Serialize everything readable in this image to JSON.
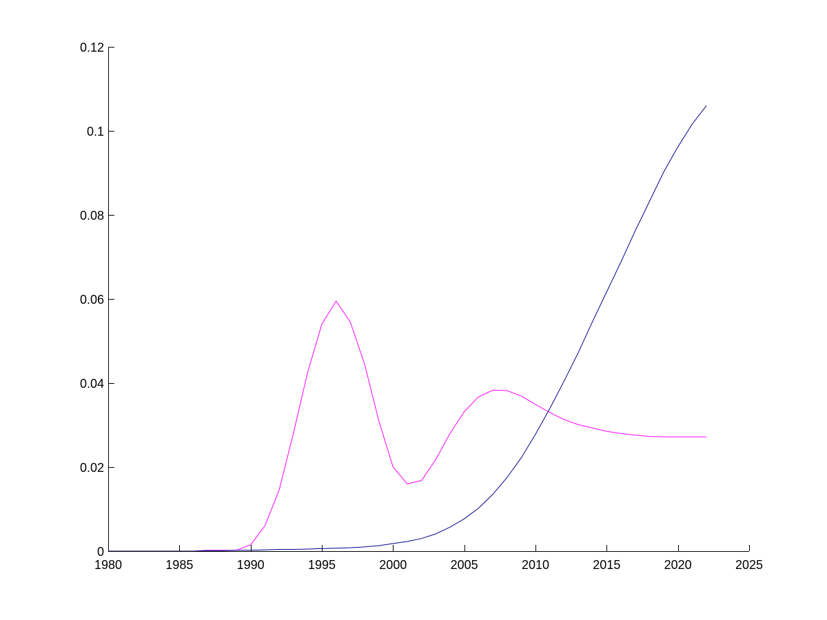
{
  "chart_data": {
    "type": "line",
    "title": "",
    "xlabel": "",
    "ylabel": "",
    "xlim": [
      1980,
      2025
    ],
    "ylim": [
      0,
      0.12
    ],
    "grid": false,
    "x_ticks": [
      1980,
      1985,
      1990,
      1995,
      2000,
      2005,
      2010,
      2015,
      2020,
      2025
    ],
    "x_tick_labels": [
      "1980",
      "1985",
      "1990",
      "1995",
      "2000",
      "2005",
      "2010",
      "2015",
      "2020",
      "2025"
    ],
    "y_ticks": [
      0,
      0.02,
      0.04,
      0.06,
      0.08,
      0.1,
      0.12
    ],
    "y_tick_labels": [
      "0",
      "0.02",
      "0.04",
      "0.06",
      "0.08",
      "0.1",
      "0.12"
    ],
    "series": [
      {
        "color": "#ff00ff",
        "x": [
          1980,
          1981,
          1982,
          1983,
          1984,
          1985,
          1986,
          1987,
          1988,
          1989,
          1990,
          1991,
          1992,
          1993,
          1994,
          1995,
          1996,
          1997,
          1998,
          1999,
          2000,
          2001,
          2002,
          2003,
          2004,
          2005,
          2006,
          2007,
          2008,
          2009,
          2010,
          2011,
          2012,
          2013,
          2014,
          2015,
          2016,
          2017,
          2018,
          2019,
          2020,
          2021,
          2022
        ],
        "y": [
          0,
          0,
          0,
          0,
          0,
          0,
          0,
          0.0002,
          0.0002,
          0.0002,
          0.0015,
          0.006,
          0.0145,
          0.028,
          0.0425,
          0.054,
          0.0595,
          0.0545,
          0.0445,
          0.031,
          0.02,
          0.016,
          0.0168,
          0.0218,
          0.028,
          0.0332,
          0.0367,
          0.0383,
          0.0382,
          0.0369,
          0.0349,
          0.033,
          0.0313,
          0.0301,
          0.0293,
          0.0285,
          0.028,
          0.0276,
          0.0273,
          0.0272,
          0.0272,
          0.0272,
          0.0272
        ]
      },
      {
        "color": "#00008b",
        "x": [
          1980,
          1981,
          1982,
          1983,
          1984,
          1985,
          1986,
          1987,
          1988,
          1989,
          1990,
          1991,
          1992,
          1993,
          1994,
          1995,
          1996,
          1997,
          1998,
          1999,
          2000,
          2001,
          2002,
          2003,
          2004,
          2005,
          2006,
          2007,
          2008,
          2009,
          2010,
          2011,
          2012,
          2013,
          2014,
          2015,
          2016,
          2017,
          2018,
          2019,
          2020,
          2021,
          2022
        ],
        "y": [
          0,
          0,
          0,
          0,
          0,
          0,
          0,
          0.0001,
          0.0001,
          0.0002,
          0.0002,
          0.0003,
          0.0004,
          0.0004,
          0.0005,
          0.0006,
          0.0007,
          0.0008,
          0.001,
          0.0013,
          0.0018,
          0.0023,
          0.003,
          0.0041,
          0.0057,
          0.0077,
          0.0102,
          0.0135,
          0.0175,
          0.0222,
          0.0278,
          0.0339,
          0.0404,
          0.0472,
          0.0546,
          0.0617,
          0.0688,
          0.0762,
          0.0832,
          0.0902,
          0.0962,
          0.1016,
          0.106
        ]
      }
    ]
  }
}
